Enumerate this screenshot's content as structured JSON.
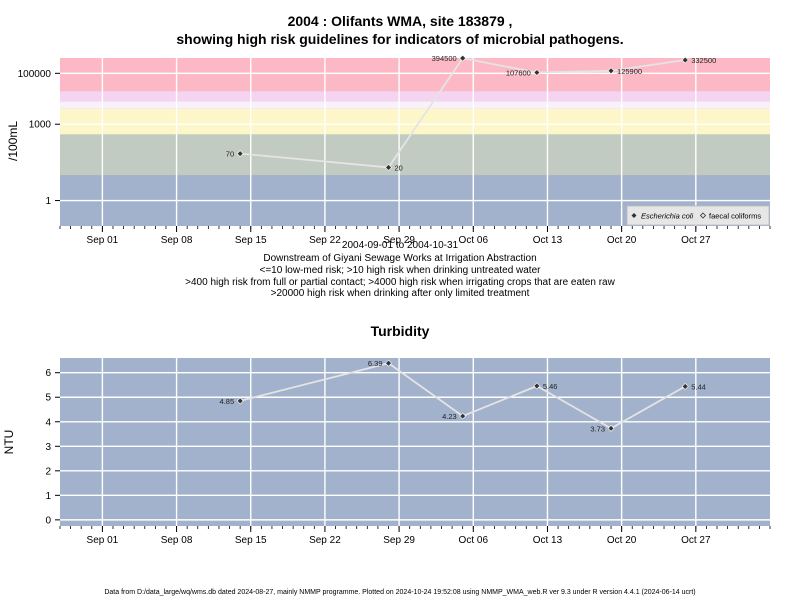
{
  "page": {
    "title_line1": "2004 : Olifants WMA, site 183879 ,",
    "title_line2": "showing high risk guidelines for indicators of microbial pathogens.",
    "footer": "Data from D:/data_large/wq/wms.db dated 2024-08-27, mainly NMMP programme. Plotted on 2024-10-24 19:52:08 using NMMP_WMA_web.R ver 9.3 under R version 4.4.1 (2024-06-14 ucrt)"
  },
  "notes": {
    "date_range": "2004-09-01 to 2004-10-31",
    "location": "Downstream of Giyani Sewage Works at Irrigation Abstraction",
    "risk1": "<=10 low-med risk; >10 high risk when drinking untreated water",
    "risk2": ">400 high risk from full or partial contact; >4000 high risk when irrigating crops that are eaten raw",
    "risk3": ">20000 high risk when drinking after only limited treatment"
  },
  "colors": {
    "band_low": "#a2b2cc",
    "band_contact": "#c2cbc2",
    "band_irrigation": "#fdf6c8",
    "band_limited": "#f9f0f8",
    "band_pink_light": "#f5d4f2",
    "band_high": "#fcb9c5",
    "line": "#e4e4e4",
    "marker": "#333333"
  },
  "chart_data": [
    {
      "type": "line",
      "title": "",
      "ylabel": "/100mL",
      "yscale": "log",
      "ylim": [
        0.1,
        400000
      ],
      "yticks": [
        1,
        1000,
        100000
      ],
      "ytick_labels": [
        "1",
        "1000",
        "100000"
      ],
      "xlim": [
        "2004-08-28",
        "2004-11-03"
      ],
      "xticks": [
        "2004-09-01",
        "2004-09-08",
        "2004-09-15",
        "2004-09-22",
        "2004-09-29",
        "2004-10-06",
        "2004-10-13",
        "2004-10-20",
        "2004-10-27"
      ],
      "xtick_labels": [
        "Sep 01",
        "Sep 08",
        "Sep 15",
        "Sep 22",
        "Sep 29",
        "Oct 06",
        "Oct 13",
        "Oct 20",
        "Oct 27"
      ],
      "risk_bands": [
        {
          "from": 0.1,
          "to": 10,
          "color_key": "band_low"
        },
        {
          "from": 10,
          "to": 400,
          "color_key": "band_contact"
        },
        {
          "from": 400,
          "to": 4000,
          "color_key": "band_irrigation"
        },
        {
          "from": 4000,
          "to": 8000,
          "color_key": "band_limited"
        },
        {
          "from": 8000,
          "to": 20000,
          "color_key": "band_pink_light"
        },
        {
          "from": 20000,
          "to": 400000,
          "color_key": "band_high"
        }
      ],
      "series": [
        {
          "name": "Escherichia coli",
          "x": [
            "2004-09-14",
            "2004-09-28",
            "2004-10-05",
            "2004-10-12",
            "2004-10-19",
            "2004-10-26"
          ],
          "y": [
            70,
            20,
            394500,
            107600,
            125900,
            332500
          ],
          "labels": [
            "70",
            "20",
            "394500",
            "107600",
            "125900",
            "332500"
          ],
          "label_side": [
            "left",
            "right",
            "left",
            "left",
            "right",
            "right"
          ]
        }
      ],
      "legend": {
        "position": "bottom-right",
        "entries": [
          "Escherichia coli",
          "faecal coliforms"
        ]
      },
      "grid": true
    },
    {
      "type": "line",
      "title": "Turbidity",
      "ylabel": "NTU",
      "ylim": [
        -0.25,
        6.6
      ],
      "yticks": [
        0,
        1,
        2,
        3,
        4,
        5,
        6
      ],
      "ytick_labels": [
        "0",
        "1",
        "2",
        "3",
        "4",
        "5",
        "6"
      ],
      "xlim": [
        "2004-08-28",
        "2004-11-03"
      ],
      "xticks": [
        "2004-09-01",
        "2004-09-08",
        "2004-09-15",
        "2004-09-22",
        "2004-09-29",
        "2004-10-06",
        "2004-10-13",
        "2004-10-20",
        "2004-10-27"
      ],
      "xtick_labels": [
        "Sep 01",
        "Sep 08",
        "Sep 15",
        "Sep 22",
        "Sep 29",
        "Oct 06",
        "Oct 13",
        "Oct 20",
        "Oct 27"
      ],
      "series": [
        {
          "name": "",
          "x": [
            "2004-09-14",
            "2004-09-28",
            "2004-10-05",
            "2004-10-12",
            "2004-10-19",
            "2004-10-26"
          ],
          "y": [
            4.85,
            6.39,
            4.23,
            5.46,
            3.73,
            5.44
          ],
          "labels": [
            "4.85",
            "6.39",
            "4.23",
            "5.46",
            "3.73",
            "5.44"
          ],
          "label_side": [
            "left",
            "left",
            "left",
            "right",
            "left",
            "right"
          ]
        }
      ],
      "grid": true
    }
  ]
}
